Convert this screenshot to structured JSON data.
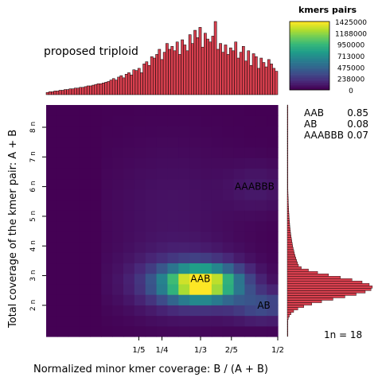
{
  "chart_data": {
    "type": "heatmap",
    "title": "",
    "xlabel": "Normalized minor kmer coverage: B / (A + B)",
    "ylabel": "Total coverage of the kmer pair: A + B",
    "annotation": "proposed triploid",
    "x_ticks": [
      "1/5",
      "1/4",
      "1/3",
      "2/5",
      "1/2"
    ],
    "x_tick_values": [
      0.2,
      0.25,
      0.3333,
      0.4,
      0.5
    ],
    "xlim": [
      0,
      0.5
    ],
    "y_ticks": [
      "2 n",
      "3 n",
      "4 n",
      "5 n",
      "6 n",
      "7 n",
      "8 n"
    ],
    "y_tick_values": [
      2,
      3,
      4,
      5,
      6,
      7,
      8
    ],
    "ylim": [
      0.95,
      8.75
    ],
    "peak_labels": [
      {
        "text": "AAB",
        "x": 0.333,
        "y": 2.9
      },
      {
        "text": "AB",
        "x": 0.47,
        "y": 2.0
      },
      {
        "text": "AAABBB",
        "x": 0.45,
        "y": 6.0
      }
    ],
    "legend": {
      "title": "kmers pairs",
      "colorscale": "viridis",
      "labels": [
        "1425000",
        "1188000",
        "950000",
        "713000",
        "475000",
        "238000",
        "0"
      ]
    },
    "model_proportions": [
      {
        "genotype": "AAB",
        "value": "0.85"
      },
      {
        "genotype": "AB",
        "value": "0.08"
      },
      {
        "genotype": "AAABBB",
        "value": "0.07"
      }
    ],
    "one_n_label": "1n =  18",
    "heat_max": 1425000,
    "heat_peaks": [
      {
        "x": 0.335,
        "y": 2.75,
        "value": 1425000,
        "sx": 0.055,
        "sy": 0.38
      },
      {
        "x": 0.3,
        "y": 2.75,
        "value": 260000,
        "sx": 0.085,
        "sy": 0.75
      },
      {
        "x": 0.47,
        "y": 2.0,
        "value": 330000,
        "sx": 0.05,
        "sy": 0.35
      },
      {
        "x": 0.27,
        "y": 5.3,
        "value": 70000,
        "sx": 0.1,
        "sy": 1.6
      },
      {
        "x": 0.46,
        "y": 6.0,
        "value": 90000,
        "sx": 0.05,
        "sy": 0.6
      }
    ],
    "top_histogram_values": [
      3,
      4,
      4,
      5,
      5,
      6,
      6,
      7,
      7,
      8,
      8,
      9,
      9,
      10,
      10,
      11,
      12,
      12,
      13,
      14,
      15,
      15,
      16,
      17,
      18,
      20,
      22,
      20,
      24,
      26,
      23,
      28,
      30,
      27,
      34,
      33,
      36,
      30,
      42,
      45,
      40,
      52,
      50,
      55,
      62,
      48,
      58,
      70,
      62,
      66,
      60,
      72,
      55,
      75,
      68,
      60,
      82,
      70,
      88,
      78,
      92,
      65,
      84,
      76,
      72,
      80,
      100,
      62,
      70,
      58,
      68,
      55,
      64,
      60,
      72,
      50,
      58,
      66,
      46,
      60,
      40,
      56,
      52,
      36,
      50,
      44,
      38,
      48,
      42,
      36,
      32
    ],
    "side_histogram_peak": 2.6,
    "side_histogram_spread": 0.35
  }
}
